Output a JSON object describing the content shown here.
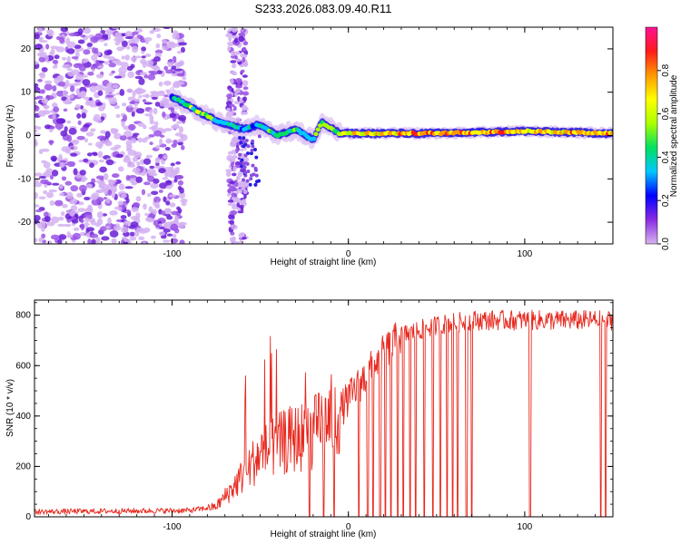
{
  "title": "S233.2026.083.09.40.R11",
  "chart_data": [
    {
      "type": "heatmap",
      "name": "spectrogram",
      "xlabel": "Height of straight line (km)",
      "ylabel": "Frequency (Hz)",
      "xlim": [
        -178,
        150
      ],
      "ylim": [
        -25,
        25
      ],
      "xticks": [
        -100,
        0,
        100
      ],
      "yticks": [
        -20,
        -10,
        0,
        10,
        20
      ],
      "colorbar": {
        "label": "Normalized spectral amplitude",
        "range": [
          0,
          1
        ],
        "ticks": [
          "0.0",
          "0.2",
          "0.4",
          "0.6",
          "0.8"
        ],
        "colors": [
          "#d6b3ef",
          "#8a2be2",
          "#0000ff",
          "#00c8ff",
          "#00e060",
          "#aaff00",
          "#ffff00",
          "#ff9900",
          "#ff1a1a",
          "#ff1493"
        ]
      },
      "carrier_track": [
        {
          "x": -100,
          "f": 9,
          "amp": 0.3
        },
        {
          "x": -85,
          "f": 5.5,
          "amp": 0.55
        },
        {
          "x": -75,
          "f": 3.5,
          "amp": 0.45
        },
        {
          "x": -60,
          "f": 1.5,
          "amp": 0.35
        },
        {
          "x": -50,
          "f": 2.5,
          "amp": 0.4
        },
        {
          "x": -40,
          "f": 0,
          "amp": 0.5
        },
        {
          "x": -30,
          "f": 1.5,
          "amp": 0.4
        },
        {
          "x": -20,
          "f": -1,
          "amp": 0.45
        },
        {
          "x": -15,
          "f": 3,
          "amp": 0.5
        },
        {
          "x": -5,
          "f": 0.5,
          "amp": 0.6
        },
        {
          "x": 50,
          "f": 0.5,
          "amp": 0.75
        },
        {
          "x": 100,
          "f": 1,
          "amp": 0.7
        },
        {
          "x": 150,
          "f": 0.5,
          "amp": 0.72
        }
      ]
    },
    {
      "type": "line",
      "name": "snr",
      "xlabel": "Height of straight line (km)",
      "ylabel": "SNR (10 * v/v)",
      "xlim": [
        -178,
        150
      ],
      "ylim": [
        0,
        860
      ],
      "xticks": [
        -100,
        0,
        100
      ],
      "yticks": [
        0,
        200,
        400,
        600,
        800
      ],
      "color": "#e8281e",
      "envelope": [
        {
          "x": -178,
          "y": 20
        },
        {
          "x": -90,
          "y": 25
        },
        {
          "x": -75,
          "y": 40
        },
        {
          "x": -65,
          "y": 120
        },
        {
          "x": -50,
          "y": 250
        },
        {
          "x": -35,
          "y": 300
        },
        {
          "x": -20,
          "y": 330
        },
        {
          "x": -5,
          "y": 420
        },
        {
          "x": 10,
          "y": 560
        },
        {
          "x": 20,
          "y": 650
        },
        {
          "x": 30,
          "y": 720
        },
        {
          "x": 50,
          "y": 760
        },
        {
          "x": 70,
          "y": 780
        },
        {
          "x": 100,
          "y": 780
        },
        {
          "x": 150,
          "y": 780
        }
      ],
      "dropouts": [
        -22,
        -14,
        -8,
        6,
        11,
        14,
        18,
        21,
        24,
        28,
        31,
        35,
        38,
        43,
        48,
        52,
        56,
        59,
        62,
        67,
        70,
        103,
        143,
        146
      ]
    }
  ]
}
